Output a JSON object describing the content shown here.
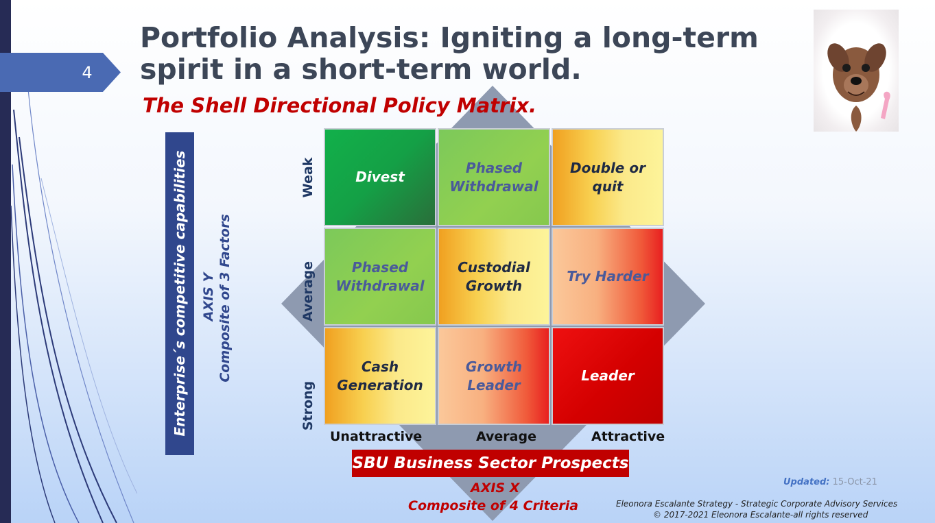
{
  "slide": {
    "number": "4"
  },
  "header": {
    "title_line1": "Portfolio Analysis: Igniting a long-term",
    "title_line2": "spirit in a short-term world.",
    "subtitle": "The Shell Directional Policy Matrix."
  },
  "y_axis": {
    "label": "Enterprise´s competitive capabilities",
    "name": "AXIS Y",
    "composite": "Composite of 3 Factors",
    "ticks": [
      "Weak",
      "Average",
      "Strong"
    ]
  },
  "x_axis": {
    "label": "SBU Business Sector Prospects",
    "name": "AXIS X",
    "composite": "Composite of  4 Criteria",
    "ticks": [
      "Unattractive",
      "Average",
      "Attractive"
    ]
  },
  "matrix": [
    {
      "row": "Weak",
      "col": "Unattractive",
      "line1": "Divest",
      "line2": "",
      "text_color": "#ffffff",
      "fill": "green-dark"
    },
    {
      "row": "Weak",
      "col": "Average",
      "line1": "Phased",
      "line2": "Withdrawal",
      "text_color": "#4a5a9a",
      "fill": "green-light"
    },
    {
      "row": "Weak",
      "col": "Attractive",
      "line1": "Double or",
      "line2": "quit",
      "text_color": "#1f2a44",
      "fill": "orange-yellow"
    },
    {
      "row": "Average",
      "col": "Unattractive",
      "line1": "Phased",
      "line2": "Withdrawal",
      "text_color": "#4a5a9a",
      "fill": "green-light"
    },
    {
      "row": "Average",
      "col": "Average",
      "line1": "Custodial",
      "line2": "Growth",
      "text_color": "#1f2a44",
      "fill": "orange-yellow"
    },
    {
      "row": "Average",
      "col": "Attractive",
      "line1": "Try Harder",
      "line2": "",
      "text_color": "#4a5a9a",
      "fill": "peach-red"
    },
    {
      "row": "Strong",
      "col": "Unattractive",
      "line1": "Cash",
      "line2": "Generation",
      "text_color": "#1f2a44",
      "fill": "orange-yellow"
    },
    {
      "row": "Strong",
      "col": "Average",
      "line1": "Growth",
      "line2": "Leader",
      "text_color": "#4a5a9a",
      "fill": "peach-red"
    },
    {
      "row": "Strong",
      "col": "Attractive",
      "line1": "Leader",
      "line2": "",
      "text_color": "#ffffff",
      "fill": "red"
    }
  ],
  "updated": {
    "label": "Updated:",
    "date": "15-Oct-21"
  },
  "footer": {
    "line1": "Eleonora Escalante Strategy - Strategic Corporate Advisory Services",
    "line2": "© 2017-2021  Eleonora Escalante-all rights reserved"
  },
  "colors": {
    "title": "#3c4657",
    "accent_red": "#c00000",
    "axis_blue": "#30478d",
    "left_bar": "#262b55"
  }
}
